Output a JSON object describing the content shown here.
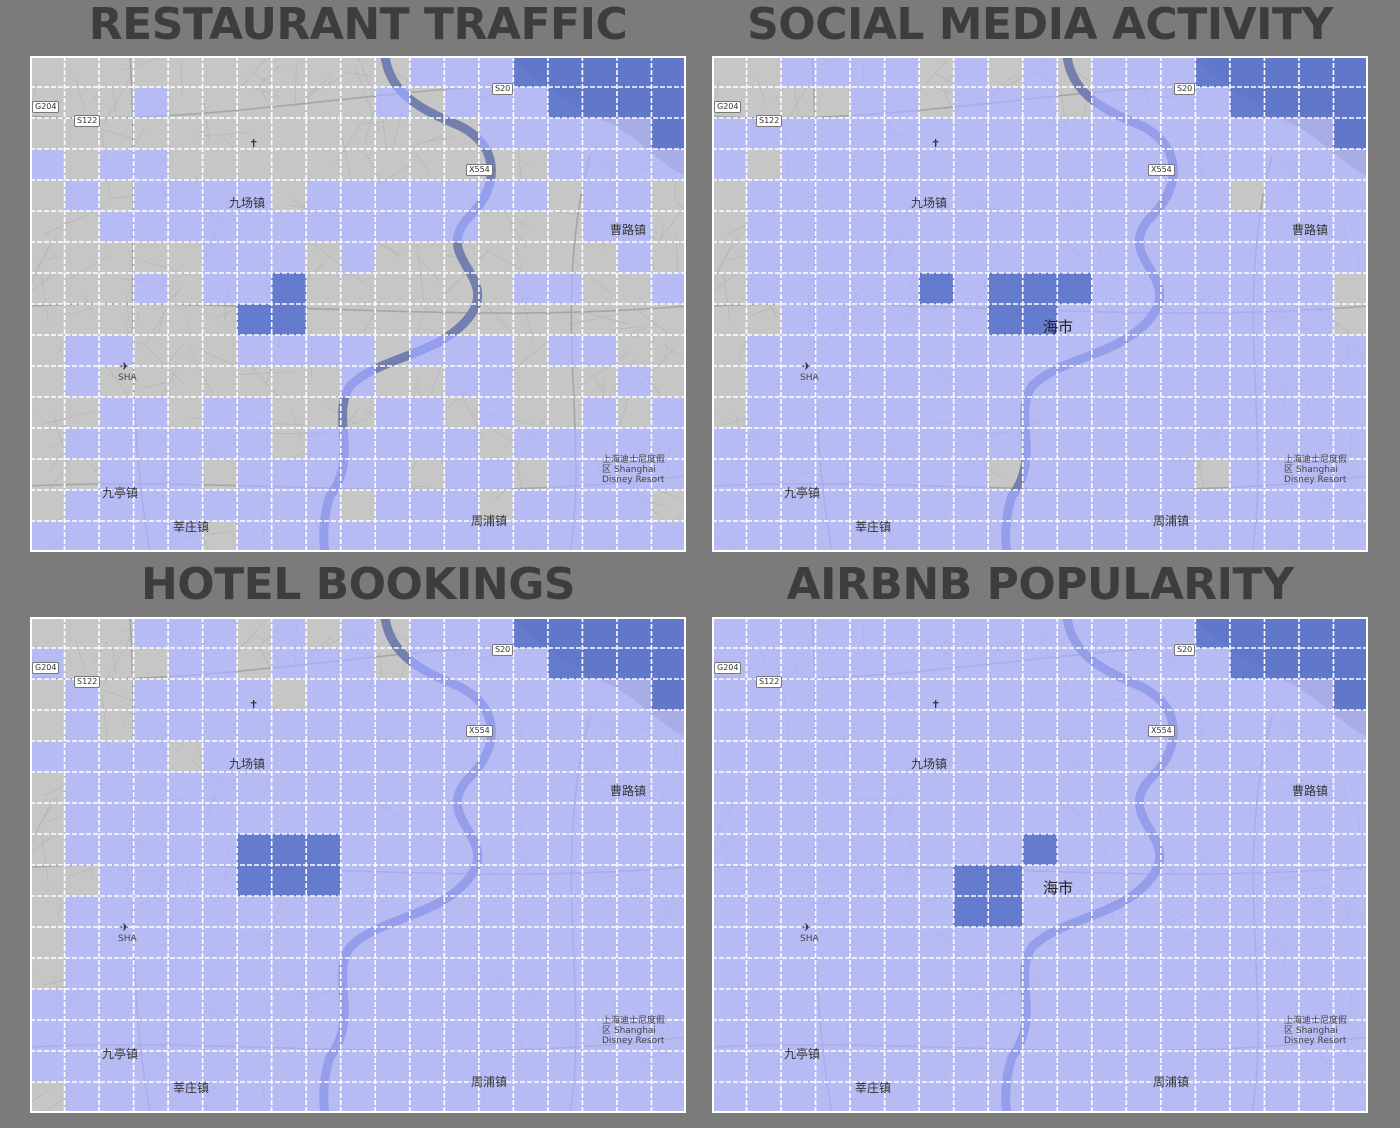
{
  "panels": [
    {
      "title": "RESTAURANT TRAFFIC",
      "grid": [
        "...........1112222",
        "..........1.1112222",
        "...1..........1...2",
        "1..2..........1....",
        "0.1111.1111.111.1.0",
        "0.11111111111......",
        "......11.1.......1.",
        ".....1123..........",
        "00.....2...........",
        "..........1.1..1...",
        "0.....1..0.........",
        "...........1.......",
        "...0.....0...01.0..",
        "...1..11.1.........",
        "...................",
        "..................."
      ]
    },
    {
      "title": "SOCIAL MEDIA ACTIVITY",
      "grid": [
        "...........1112222",
        "..........1.1112222",
        "..........1.1...222",
        "1.................",
        "0.................",
        "..................",
        "......11..........",
        ".....2.2..........",
        "......222.........",
        "...........1......",
        "..................",
        "..................",
        "..................",
        "..................",
        "..................",
        "..................",
        "..................",
        "..................",
        "..................",
        "..................",
        "..................",
        "..................",
        "..................",
        "..................",
        "..................",
        "..................",
        ".................."
      ]
    }
  ],
  "panel_titles": [
    "RESTAURANT TRAFFIC",
    "SOCIAL MEDIA ACTIVITY",
    "HOTEL BOOKINGS",
    "AIRBNB POPULARITY"
  ],
  "labels": {
    "road_g204": "G204",
    "road_s20": "S20",
    "road_s122": "S122",
    "road_x554": "X554",
    "town_nw": "九场镇",
    "town_ne": "曹路镇",
    "town_sw": "九亭镇",
    "town_s": "莘庄镇",
    "town_se": "周浦镇",
    "city_center": "海市",
    "airport_code": "SHA",
    "disney_line1": "上海迪士尼度假",
    "disney_line2": "区 Shanghai",
    "disney_line3": "Disney Resort"
  },
  "legend_colors": {
    "no_data": "transparent",
    "low": "#a5abf2",
    "high": "#5d74cb"
  },
  "cells": {
    "restaurant": [
      "0000000000011122222",
      "0001000000101112222",
      "0000000000000111112",
      "1011000000000001111",
      "0101111011111110110",
      "0011111111111000110",
      "0000011101000000010",
      "0001011200000011001",
      "0000002200000000000",
      "0110001111011101100",
      "0100000001001100010",
      "0011011000110100101",
      "0111111011111011111",
      "0011101111101101111",
      "0111111110111011110",
      "1111101111111111111"
    ],
    "social": [
      "0011110101011122222",
      "0000110111011112222",
      "1111111111111111112",
      "1011111111111111111",
      "0111111111111110111",
      "0111111111111111111",
      "0111111111111111111",
      "0111112122211111110",
      "0011111122111111110",
      "0111111111111111111",
      "0111111111111111111",
      "0111111111111111111",
      "1111111111111111111",
      "1111111101111101111",
      "1111111111111111111",
      "1111111111111111111"
    ],
    "hotel": [
      "0001110101011122222",
      "1000110111011112222",
      "0101111011111111112",
      "0101111111111111111",
      "1111011111111111111",
      "0111111111111111111",
      "0111111111111111111",
      "0111112221111111111",
      "0011112221111111111",
      "0111111111111111111",
      "0111111111111111111",
      "0111111111111111111",
      "1111111111111111111",
      "1111111111111111111",
      "1111111111111111111",
      "0111111111111111111"
    ],
    "airbnb": [
      "1111111111111122222",
      "1111111111111112222",
      "1111111111111111112",
      "1111111111111111111",
      "1111111111111111111",
      "1111111111111111111",
      "1111111111111111111",
      "1111111112111111111",
      "1111111221111111111",
      "1111111221111111111",
      "1111111111111111111",
      "1111111111111111111",
      "1111111111111111111",
      "1111111111111111111",
      "1111111111111111111",
      "1111111111111111111"
    ]
  }
}
